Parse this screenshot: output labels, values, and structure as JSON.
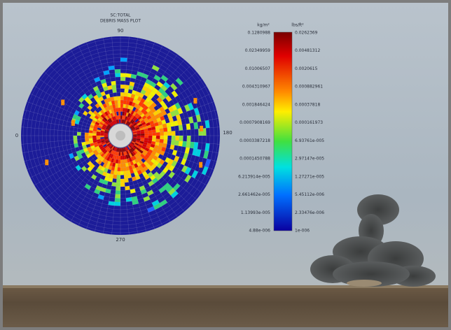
{
  "plot": {
    "title": "SC:TOTAL",
    "subtitle": "DEBRIS MASS PLOT",
    "angle_labels": {
      "top": "90",
      "left": "0",
      "right": "180",
      "bottom": "270"
    },
    "colorbar": {
      "left_unit": "kg/m²",
      "right_unit": "lbs/ft²",
      "left_labels": [
        "0.1280988",
        "0.02349959",
        "0.01006507",
        "0.004310967",
        "0.001846424",
        "0.0007908169",
        "0.0003387218",
        "0.0001450788",
        "6.213914e-005",
        "2.661462e-005",
        "1.13993e-005",
        "4.88e-006"
      ],
      "right_labels": [
        "0.0262369",
        "0.00481312",
        "0.0020615",
        "0.000882961",
        "0.00037818",
        "0.000161973",
        "6.93761e-005",
        "2.97147e-005",
        "1.27271e-005",
        "5.45112e-006",
        "2.33476e-006",
        "1e-006"
      ]
    }
  }
}
